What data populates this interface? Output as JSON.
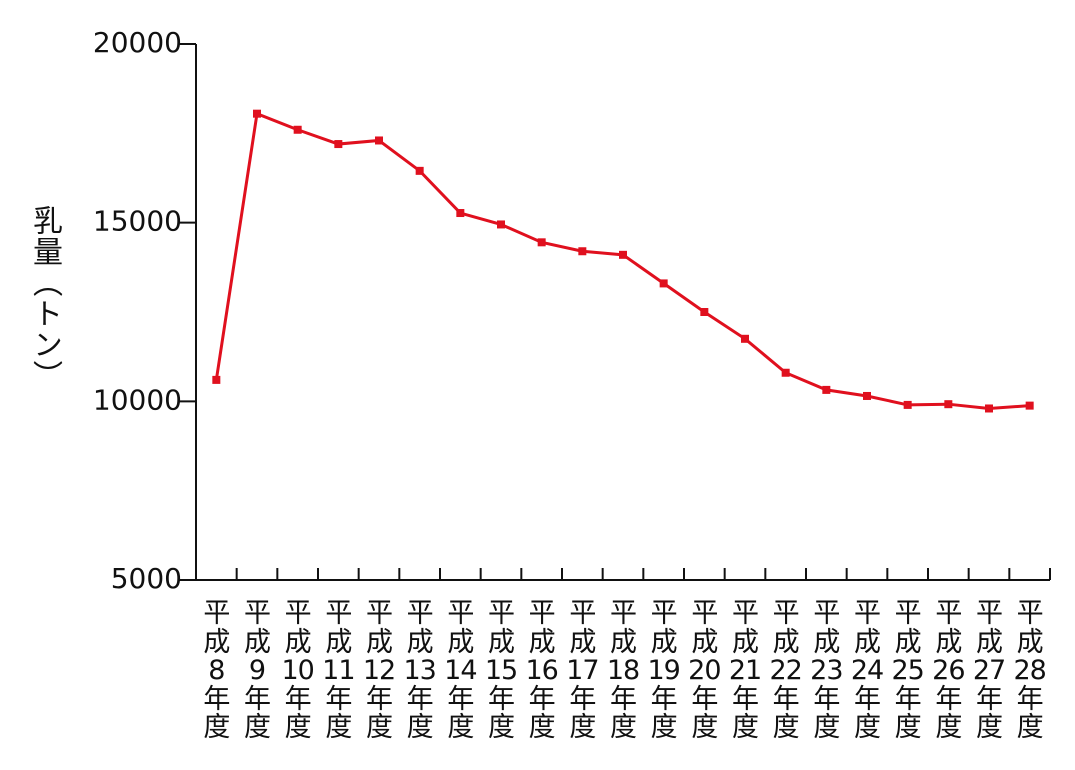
{
  "chart_data": {
    "type": "line",
    "y_label": "乳量（トン）",
    "categories": [
      "平成8年度",
      "平成9年度",
      "平成10年度",
      "平成11年度",
      "平成12年度",
      "平成13年度",
      "平成14年度",
      "平成15年度",
      "平成16年度",
      "平成17年度",
      "平成18年度",
      "平成19年度",
      "平成20年度",
      "平成21年度",
      "平成22年度",
      "平成23年度",
      "平成24年度",
      "平成25年度",
      "平成26年度",
      "平成27年度",
      "平成28年度"
    ],
    "series": [
      {
        "name": "乳量",
        "color": "#e0101e",
        "values": [
          10600,
          18050,
          17600,
          17200,
          17300,
          16450,
          15270,
          14950,
          14450,
          14200,
          14100,
          13300,
          12500,
          11750,
          10800,
          10320,
          10150,
          9900,
          9920,
          9800,
          9880
        ]
      }
    ],
    "ylim": [
      5000,
      20000
    ],
    "yticks": [
      5000,
      10000,
      15000,
      20000
    ]
  }
}
